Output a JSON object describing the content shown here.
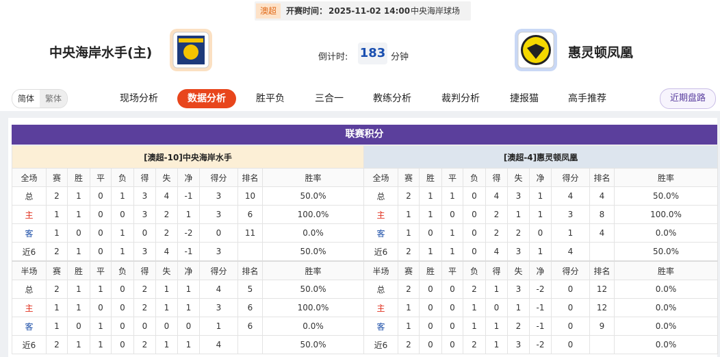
{
  "match_bar": {
    "league": "澳超",
    "kickoff_label": "开赛时间：",
    "kickoff": "2025-11-02 14:00",
    "venue": "中央海岸球场"
  },
  "home_team": "中央海岸水手(主)",
  "away_team": "惠灵顿凤凰",
  "countdown": {
    "label": "倒计时:",
    "value": "183",
    "unit": "分钟"
  },
  "language": [
    "简体",
    "繁体"
  ],
  "tabs": [
    {
      "label": "现场分析",
      "active": false
    },
    {
      "label": "数据分析",
      "active": true
    },
    {
      "label": "胜平负",
      "active": false
    },
    {
      "label": "三合一",
      "active": false
    },
    {
      "label": "教练分析",
      "active": false
    },
    {
      "label": "裁判分析",
      "active": false
    },
    {
      "label": "捷报猫",
      "active": false
    },
    {
      "label": "高手推荐",
      "active": false
    }
  ],
  "side_button": "近期盘路",
  "standings": {
    "title": "联赛积分",
    "tables": [
      {
        "team": "[澳超-10]中央海岸水手",
        "sections": [
          {
            "header": [
              "全场",
              "赛",
              "胜",
              "平",
              "负",
              "得",
              "失",
              "净",
              "得分",
              "排名",
              "胜率"
            ],
            "rows": [
              [
                "总",
                "2",
                "1",
                "0",
                "1",
                "3",
                "4",
                "-1",
                "3",
                "10",
                "50.0%"
              ],
              [
                "主",
                "1",
                "1",
                "0",
                "0",
                "3",
                "2",
                "1",
                "3",
                "6",
                "100.0%"
              ],
              [
                "客",
                "1",
                "0",
                "0",
                "1",
                "0",
                "2",
                "-2",
                "0",
                "11",
                "0.0%"
              ],
              [
                "近6",
                "2",
                "1",
                "0",
                "1",
                "3",
                "4",
                "-1",
                "3",
                null,
                "50.0%"
              ]
            ]
          },
          {
            "header": [
              "半场",
              "赛",
              "胜",
              "平",
              "负",
              "得",
              "失",
              "净",
              "得分",
              "排名",
              "胜率"
            ],
            "rows": [
              [
                "总",
                "2",
                "1",
                "1",
                "0",
                "2",
                "1",
                "1",
                "4",
                "5",
                "50.0%"
              ],
              [
                "主",
                "1",
                "1",
                "0",
                "0",
                "2",
                "1",
                "1",
                "3",
                "6",
                "100.0%"
              ],
              [
                "客",
                "1",
                "0",
                "1",
                "0",
                "0",
                "0",
                "0",
                "1",
                "6",
                "0.0%"
              ],
              [
                "近6",
                "2",
                "1",
                "1",
                "0",
                "2",
                "1",
                "1",
                "4",
                null,
                "50.0%"
              ]
            ]
          }
        ]
      },
      {
        "team": "[澳超-4]惠灵顿凤凰",
        "sections": [
          {
            "header": [
              "全场",
              "赛",
              "胜",
              "平",
              "负",
              "得",
              "失",
              "净",
              "得分",
              "排名",
              "胜率"
            ],
            "rows": [
              [
                "总",
                "2",
                "1",
                "1",
                "0",
                "4",
                "3",
                "1",
                "4",
                "4",
                "50.0%"
              ],
              [
                "主",
                "1",
                "1",
                "0",
                "0",
                "2",
                "1",
                "1",
                "3",
                "8",
                "100.0%"
              ],
              [
                "客",
                "1",
                "0",
                "1",
                "0",
                "2",
                "2",
                "0",
                "1",
                "4",
                "0.0%"
              ],
              [
                "近6",
                "2",
                "1",
                "1",
                "0",
                "4",
                "3",
                "1",
                "4",
                null,
                "50.0%"
              ]
            ]
          },
          {
            "header": [
              "半场",
              "赛",
              "胜",
              "平",
              "负",
              "得",
              "失",
              "净",
              "得分",
              "排名",
              "胜率"
            ],
            "rows": [
              [
                "总",
                "2",
                "0",
                "0",
                "2",
                "1",
                "3",
                "-2",
                "0",
                "12",
                "0.0%"
              ],
              [
                "主",
                "1",
                "0",
                "0",
                "1",
                "0",
                "1",
                "-1",
                "0",
                "12",
                "0.0%"
              ],
              [
                "客",
                "1",
                "0",
                "0",
                "1",
                "1",
                "2",
                "-1",
                "0",
                "9",
                "0.0%"
              ],
              [
                "近6",
                "2",
                "0",
                "0",
                "2",
                "1",
                "3",
                "-2",
                "0",
                null,
                "0.0%"
              ]
            ]
          }
        ]
      }
    ]
  }
}
